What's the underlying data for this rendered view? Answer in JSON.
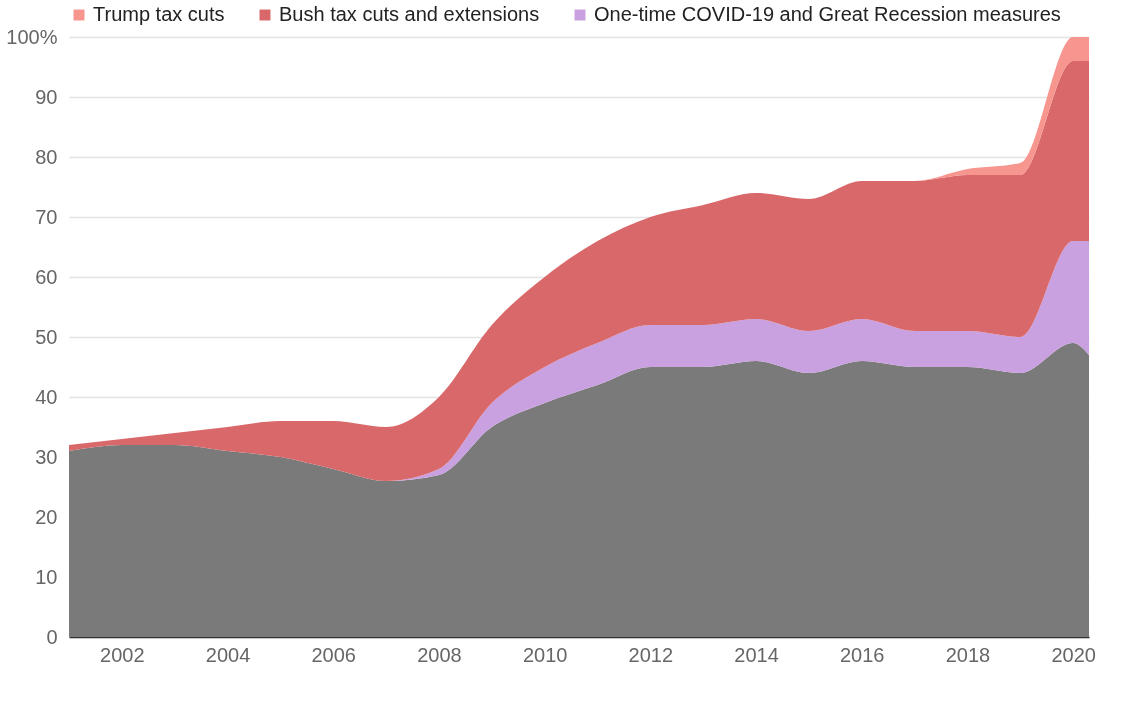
{
  "chart_data": {
    "type": "area",
    "stacked": true,
    "x": [
      2001,
      2002,
      2003,
      2004,
      2005,
      2006,
      2007,
      2008,
      2009,
      2010,
      2011,
      2012,
      2013,
      2014,
      2015,
      2016,
      2017,
      2018,
      2019,
      2020,
      2020.3
    ],
    "series": [
      {
        "color": "#7a7a7a",
        "values": [
          31,
          32,
          32,
          31,
          30,
          28,
          26,
          27,
          35,
          39,
          42,
          45,
          45,
          46,
          44,
          46,
          45,
          45,
          44,
          49,
          47
        ]
      },
      {
        "name": "One-time COVID-19 and Great Recession measures",
        "color": "#c9a0e0",
        "values": [
          0,
          0,
          0,
          0,
          0,
          0,
          0,
          1,
          4,
          6,
          7,
          7,
          7,
          7,
          7,
          7,
          6,
          6,
          6,
          17,
          19
        ]
      },
      {
        "name": "Bush tax cuts and extensions",
        "color": "#d9686b",
        "values": [
          1,
          1,
          2,
          4,
          6,
          8,
          9,
          12,
          13,
          15,
          17,
          18,
          20,
          21,
          22,
          23,
          25,
          26,
          27,
          30,
          30
        ]
      },
      {
        "name": "Trump tax cuts",
        "color": "#f7968f",
        "values": [
          0,
          0,
          0,
          0,
          0,
          0,
          0,
          0,
          0,
          0,
          0,
          0,
          0,
          0,
          0,
          0,
          0,
          1,
          2,
          4,
          4
        ]
      }
    ],
    "xlim": [
      2001,
      2020.3
    ],
    "xticks": [
      2002,
      2004,
      2006,
      2008,
      2010,
      2012,
      2014,
      2016,
      2018,
      2020
    ],
    "ylim": [
      0,
      100
    ],
    "yticks": [
      0,
      10,
      20,
      30,
      40,
      50,
      60,
      70,
      80,
      90,
      {
        "value": 100,
        "label": "100%"
      }
    ],
    "grid": "y",
    "legend": "top left"
  }
}
